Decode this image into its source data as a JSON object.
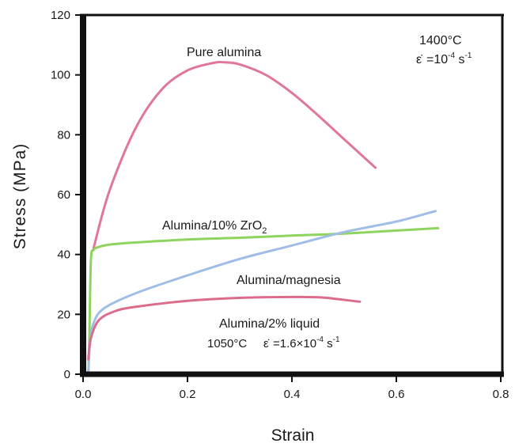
{
  "chart_data": {
    "type": "line",
    "title": "",
    "xlabel": "Strain",
    "ylabel": "Stress (MPa)",
    "xlim": [
      0,
      0.8
    ],
    "ylim": [
      0,
      120
    ],
    "x_ticks": [
      "0.0",
      "0.2",
      "0.4",
      "0.6",
      "0.8"
    ],
    "y_ticks": [
      "0",
      "20",
      "40",
      "60",
      "80",
      "100",
      "120"
    ],
    "grid": false,
    "legend": "none",
    "conditions": {
      "temperature": "1400°C",
      "strain_rate": "=10",
      "strain_rate_exp": "-4",
      "strain_rate_unit": " s",
      "strain_rate_unit_exp": "-1"
    },
    "series": [
      {
        "name": "Pure alumina",
        "color": "#e0779a",
        "points": [
          [
            0.02,
            42
          ],
          [
            0.05,
            61
          ],
          [
            0.1,
            82
          ],
          [
            0.15,
            95
          ],
          [
            0.2,
            101.5
          ],
          [
            0.25,
            104
          ],
          [
            0.27,
            104.2
          ],
          [
            0.3,
            103.5
          ],
          [
            0.35,
            100
          ],
          [
            0.4,
            94
          ],
          [
            0.45,
            86.5
          ],
          [
            0.5,
            78.5
          ],
          [
            0.56,
            69
          ]
        ]
      },
      {
        "name": "Alumina/10% ZrO",
        "name_sub": "2",
        "color": "#8ed45e",
        "points": [
          [
            0.01,
            0
          ],
          [
            0.012,
            12
          ],
          [
            0.015,
            38
          ],
          [
            0.02,
            41.5
          ],
          [
            0.03,
            42.5
          ],
          [
            0.05,
            43.3
          ],
          [
            0.1,
            44
          ],
          [
            0.2,
            45
          ],
          [
            0.3,
            45.6
          ],
          [
            0.4,
            46.3
          ],
          [
            0.5,
            47
          ],
          [
            0.6,
            48
          ],
          [
            0.68,
            48.8
          ]
        ]
      },
      {
        "name": "Alumina/magnesia",
        "color": "#9fbde6",
        "points": [
          [
            0.01,
            0
          ],
          [
            0.013,
            10
          ],
          [
            0.02,
            17
          ],
          [
            0.04,
            22
          ],
          [
            0.1,
            27
          ],
          [
            0.2,
            33
          ],
          [
            0.3,
            38.5
          ],
          [
            0.4,
            43
          ],
          [
            0.5,
            47.5
          ],
          [
            0.6,
            51
          ],
          [
            0.675,
            54.5
          ]
        ]
      },
      {
        "name": "Alumina/2% liquid",
        "color": "#dc6c8c",
        "points": [
          [
            0.01,
            5
          ],
          [
            0.015,
            12
          ],
          [
            0.03,
            18
          ],
          [
            0.06,
            21
          ],
          [
            0.1,
            22.5
          ],
          [
            0.2,
            24.5
          ],
          [
            0.3,
            25.5
          ],
          [
            0.4,
            25.8
          ],
          [
            0.46,
            25.6
          ],
          [
            0.53,
            24.2
          ]
        ]
      }
    ],
    "liquid_conditions": {
      "temperature": "1050°C",
      "strain_rate": "=1.6×10",
      "strain_rate_exp": "-4",
      "strain_rate_unit": " s",
      "strain_rate_unit_exp": "-1"
    }
  }
}
